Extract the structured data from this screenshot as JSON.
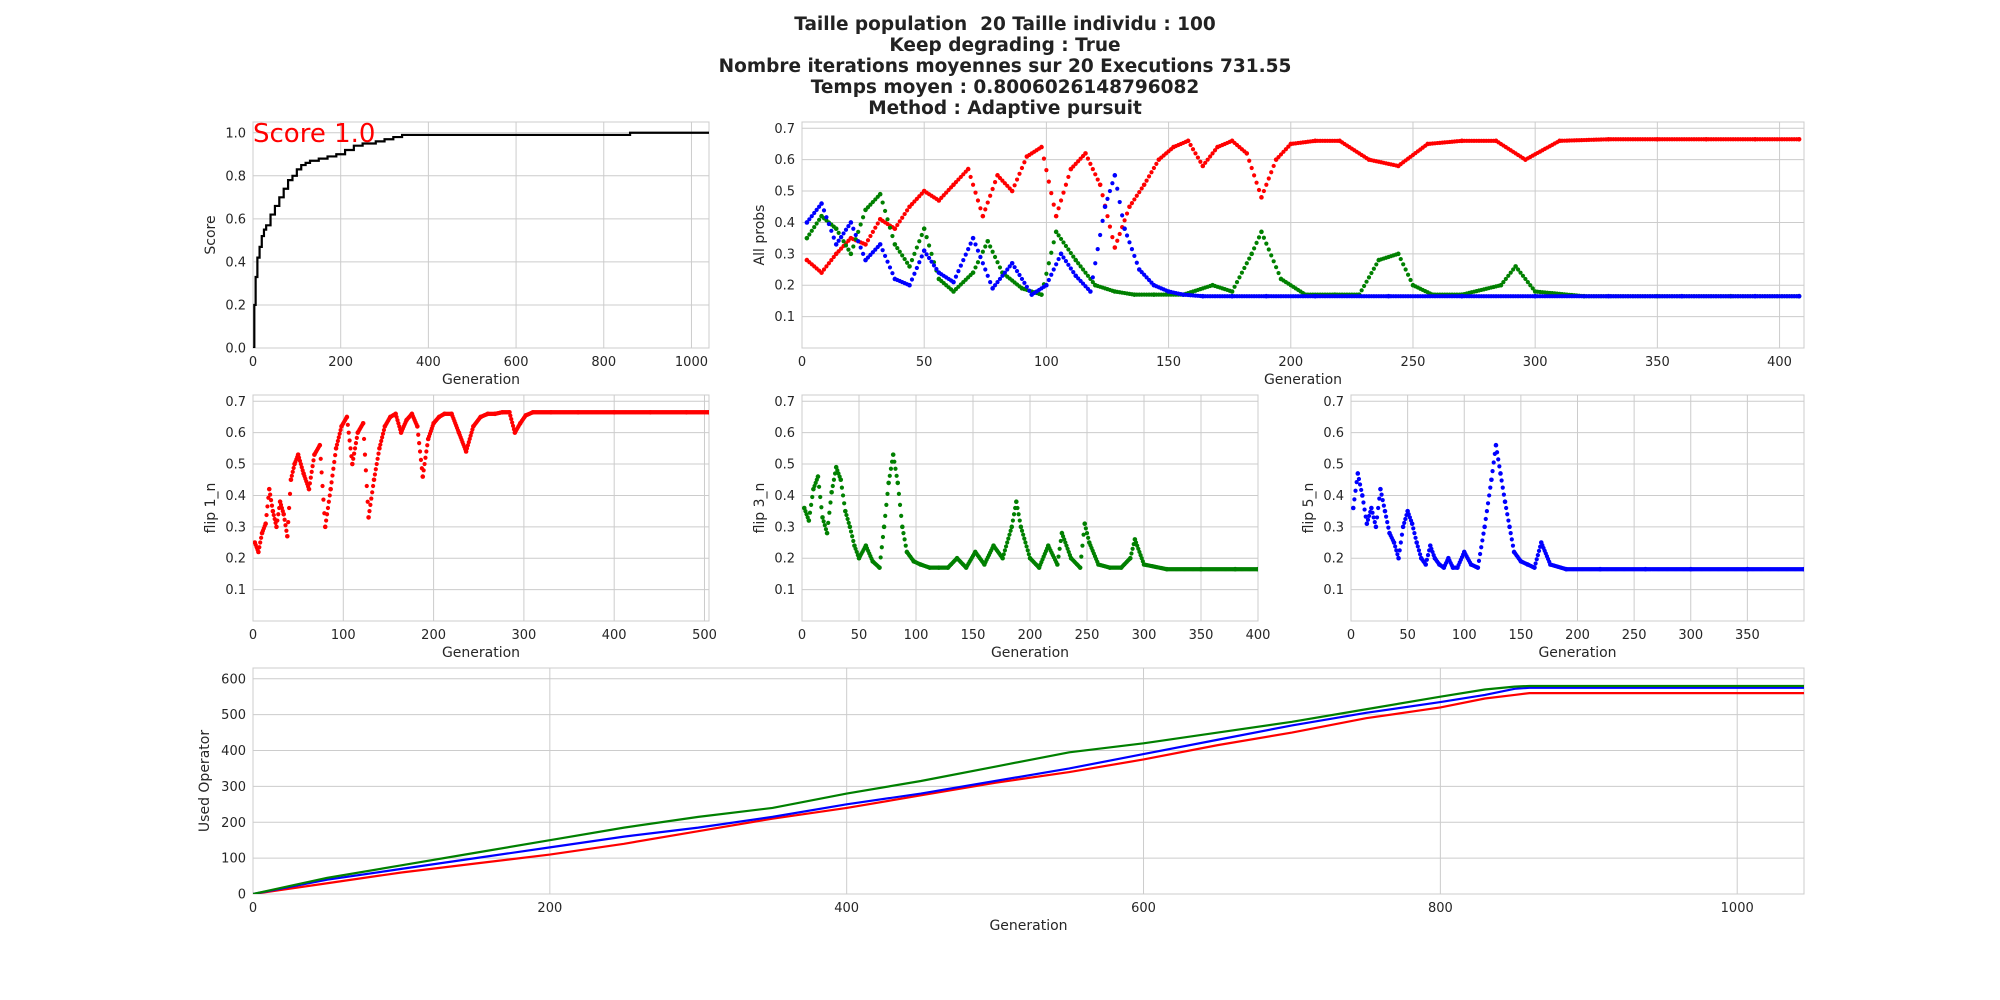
{
  "title_lines": [
    "Taille population  20 Taille individu : 100",
    "Keep degrading : True",
    "Nombre iterations moyennes sur 20 Executions 731.55",
    "Temps moyen : 0.8006026148796082",
    "Method : Adaptive pursuit"
  ],
  "colors": {
    "flip1": "#ff0000",
    "flip3": "#008000",
    "flip5": "#0000ff",
    "score": "#000000",
    "annotation": "#ff0000"
  },
  "chart_data": [
    {
      "id": "score",
      "type": "line",
      "xlabel": "Generation",
      "ylabel": "Score",
      "xlim": [
        0,
        1040
      ],
      "ylim": [
        0,
        1.05
      ],
      "xticks": [
        0,
        200,
        400,
        600,
        800,
        1000
      ],
      "yticks": [
        0.0,
        0.2,
        0.4,
        0.6,
        0.8,
        1.0
      ],
      "xtick_labels": [
        "0",
        "200",
        "400",
        "600",
        "800",
        "1000"
      ],
      "ytick_labels": [
        "0.0",
        "0.2",
        "0.4",
        "0.6",
        "0.8",
        "1.0"
      ],
      "grid": true,
      "annotation": "Score 1.0",
      "series": [
        {
          "color": "#000000",
          "step": true,
          "x": [
            0,
            3,
            6,
            10,
            15,
            20,
            25,
            30,
            40,
            50,
            60,
            70,
            80,
            90,
            100,
            110,
            120,
            130,
            150,
            170,
            190,
            210,
            230,
            250,
            280,
            300,
            320,
            340,
            400,
            500,
            600,
            700,
            860,
            1000,
            1040
          ],
          "y": [
            0.0,
            0.2,
            0.33,
            0.42,
            0.47,
            0.52,
            0.55,
            0.57,
            0.62,
            0.66,
            0.7,
            0.74,
            0.78,
            0.8,
            0.83,
            0.85,
            0.86,
            0.87,
            0.88,
            0.89,
            0.9,
            0.92,
            0.94,
            0.95,
            0.96,
            0.97,
            0.98,
            0.99,
            0.99,
            0.99,
            0.99,
            0.99,
            1.0,
            1.0,
            1.0
          ]
        }
      ]
    },
    {
      "id": "allprobs",
      "type": "scatter",
      "xlabel": "Generation",
      "ylabel": "All probs",
      "xlim": [
        0,
        410
      ],
      "ylim": [
        0.0,
        0.72
      ],
      "xticks": [
        0,
        50,
        100,
        150,
        200,
        250,
        300,
        350,
        400
      ],
      "yticks": [
        0.1,
        0.2,
        0.3,
        0.4,
        0.5,
        0.6,
        0.7
      ],
      "xtick_labels": [
        "0",
        "50",
        "100",
        "150",
        "200",
        "250",
        "300",
        "350",
        "400"
      ],
      "ytick_labels": [
        "0.1",
        "0.2",
        "0.3",
        "0.4",
        "0.5",
        "0.6",
        "0.7"
      ],
      "grid": true,
      "series": [
        {
          "color": "#ff0000",
          "x": [
            2,
            8,
            14,
            20,
            26,
            32,
            38,
            44,
            50,
            56,
            62,
            68,
            74,
            80,
            86,
            92,
            98,
            104,
            110,
            116,
            122,
            128,
            134,
            140,
            146,
            152,
            158,
            164,
            170,
            176,
            182,
            188,
            194,
            200,
            210,
            220,
            232,
            244,
            256,
            270,
            284,
            296,
            310,
            330,
            350,
            370,
            390,
            408
          ],
          "y": [
            0.28,
            0.24,
            0.3,
            0.35,
            0.33,
            0.41,
            0.38,
            0.45,
            0.5,
            0.47,
            0.52,
            0.57,
            0.42,
            0.55,
            0.5,
            0.61,
            0.64,
            0.42,
            0.57,
            0.62,
            0.52,
            0.32,
            0.45,
            0.52,
            0.6,
            0.64,
            0.66,
            0.58,
            0.64,
            0.66,
            0.62,
            0.48,
            0.6,
            0.65,
            0.66,
            0.66,
            0.6,
            0.58,
            0.65,
            0.66,
            0.66,
            0.6,
            0.66,
            0.665,
            0.665,
            0.665,
            0.665,
            0.665
          ]
        },
        {
          "color": "#008000",
          "x": [
            2,
            8,
            14,
            20,
            26,
            32,
            38,
            44,
            50,
            56,
            62,
            70,
            76,
            82,
            90,
            98,
            104,
            112,
            120,
            128,
            136,
            144,
            156,
            168,
            176,
            184,
            188,
            196,
            206,
            218,
            228,
            236,
            244,
            250,
            258,
            270,
            286,
            292,
            300,
            320,
            350,
            380,
            408
          ],
          "y": [
            0.35,
            0.42,
            0.38,
            0.3,
            0.44,
            0.49,
            0.33,
            0.26,
            0.38,
            0.22,
            0.18,
            0.24,
            0.34,
            0.24,
            0.19,
            0.17,
            0.37,
            0.28,
            0.2,
            0.18,
            0.17,
            0.17,
            0.17,
            0.2,
            0.18,
            0.3,
            0.37,
            0.22,
            0.17,
            0.17,
            0.17,
            0.28,
            0.3,
            0.2,
            0.17,
            0.17,
            0.2,
            0.26,
            0.18,
            0.165,
            0.165,
            0.165,
            0.165
          ]
        },
        {
          "color": "#0000ff",
          "x": [
            2,
            8,
            14,
            20,
            26,
            32,
            38,
            44,
            50,
            56,
            62,
            70,
            78,
            86,
            94,
            100,
            106,
            112,
            118,
            124,
            128,
            132,
            138,
            144,
            150,
            156,
            164,
            176,
            190,
            210,
            240,
            270,
            300,
            330,
            360,
            390,
            408
          ],
          "y": [
            0.4,
            0.46,
            0.33,
            0.4,
            0.28,
            0.33,
            0.22,
            0.2,
            0.31,
            0.24,
            0.21,
            0.35,
            0.19,
            0.27,
            0.17,
            0.2,
            0.3,
            0.23,
            0.18,
            0.45,
            0.55,
            0.38,
            0.25,
            0.2,
            0.18,
            0.17,
            0.165,
            0.165,
            0.165,
            0.165,
            0.165,
            0.165,
            0.165,
            0.165,
            0.165,
            0.165,
            0.165
          ]
        }
      ]
    },
    {
      "id": "flip1",
      "type": "scatter",
      "xlabel": "Generation",
      "ylabel": "flip 1_n",
      "xlim": [
        0,
        505
      ],
      "ylim": [
        0.0,
        0.72
      ],
      "xticks": [
        0,
        100,
        200,
        300,
        400,
        500
      ],
      "yticks": [
        0.1,
        0.2,
        0.3,
        0.4,
        0.5,
        0.6,
        0.7
      ],
      "xtick_labels": [
        "0",
        "100",
        "200",
        "300",
        "400",
        "500"
      ],
      "ytick_labels": [
        "0.1",
        "0.2",
        "0.3",
        "0.4",
        "0.5",
        "0.6",
        "0.7"
      ],
      "grid": true,
      "series": [
        {
          "color": "#ff0000",
          "x": [
            2,
            6,
            10,
            14,
            18,
            22,
            26,
            30,
            34,
            38,
            42,
            46,
            50,
            56,
            62,
            68,
            74,
            80,
            86,
            92,
            98,
            104,
            110,
            116,
            122,
            128,
            134,
            140,
            146,
            152,
            158,
            164,
            170,
            176,
            182,
            188,
            194,
            200,
            206,
            212,
            220,
            228,
            236,
            244,
            252,
            260,
            268,
            276,
            284,
            290,
            296,
            302,
            310,
            330,
            360,
            400,
            440,
            480,
            505
          ],
          "y": [
            0.25,
            0.22,
            0.28,
            0.31,
            0.42,
            0.35,
            0.3,
            0.38,
            0.34,
            0.27,
            0.45,
            0.5,
            0.53,
            0.47,
            0.42,
            0.53,
            0.56,
            0.3,
            0.42,
            0.55,
            0.62,
            0.65,
            0.5,
            0.6,
            0.63,
            0.33,
            0.45,
            0.55,
            0.62,
            0.65,
            0.66,
            0.6,
            0.64,
            0.66,
            0.62,
            0.46,
            0.58,
            0.63,
            0.65,
            0.66,
            0.66,
            0.6,
            0.54,
            0.62,
            0.65,
            0.66,
            0.66,
            0.665,
            0.665,
            0.6,
            0.63,
            0.655,
            0.665,
            0.665,
            0.665,
            0.665,
            0.665,
            0.665,
            0.665
          ]
        }
      ]
    },
    {
      "id": "flip3",
      "type": "scatter",
      "xlabel": "Generation",
      "ylabel": "flip 3_n",
      "xlim": [
        0,
        400
      ],
      "ylim": [
        0.0,
        0.72
      ],
      "xticks": [
        0,
        50,
        100,
        150,
        200,
        250,
        300,
        350,
        400
      ],
      "yticks": [
        0.1,
        0.2,
        0.3,
        0.4,
        0.5,
        0.6,
        0.7
      ],
      "xtick_labels": [
        "0",
        "50",
        "100",
        "150",
        "200",
        "250",
        "300",
        "350",
        "400"
      ],
      "ytick_labels": [
        "0.1",
        "0.2",
        "0.3",
        "0.4",
        "0.5",
        "0.6",
        "0.7"
      ],
      "grid": true,
      "series": [
        {
          "color": "#008000",
          "x": [
            2,
            6,
            10,
            14,
            18,
            22,
            26,
            30,
            34,
            38,
            42,
            46,
            50,
            56,
            62,
            68,
            72,
            76,
            80,
            84,
            88,
            92,
            98,
            104,
            112,
            120,
            128,
            136,
            144,
            152,
            160,
            168,
            176,
            184,
            188,
            192,
            200,
            208,
            216,
            224,
            228,
            236,
            244,
            248,
            252,
            260,
            270,
            280,
            288,
            292,
            300,
            320,
            350,
            380,
            400
          ],
          "y": [
            0.36,
            0.32,
            0.42,
            0.46,
            0.33,
            0.28,
            0.41,
            0.49,
            0.45,
            0.35,
            0.3,
            0.24,
            0.2,
            0.24,
            0.19,
            0.17,
            0.3,
            0.44,
            0.53,
            0.44,
            0.3,
            0.22,
            0.19,
            0.18,
            0.17,
            0.17,
            0.17,
            0.2,
            0.17,
            0.22,
            0.18,
            0.24,
            0.2,
            0.3,
            0.38,
            0.3,
            0.2,
            0.17,
            0.24,
            0.18,
            0.28,
            0.2,
            0.17,
            0.31,
            0.25,
            0.18,
            0.17,
            0.17,
            0.2,
            0.26,
            0.18,
            0.165,
            0.165,
            0.165,
            0.165
          ]
        }
      ]
    },
    {
      "id": "flip5",
      "type": "scatter",
      "xlabel": "Generation",
      "ylabel": "flip 5_n",
      "xlim": [
        0,
        400
      ],
      "ylim": [
        0.0,
        0.72
      ],
      "xticks": [
        0,
        50,
        100,
        150,
        200,
        250,
        300,
        350
      ],
      "yticks": [
        0.1,
        0.2,
        0.3,
        0.4,
        0.5,
        0.6,
        0.7
      ],
      "xtick_labels": [
        "0",
        "50",
        "100",
        "150",
        "200",
        "250",
        "300",
        "350"
      ],
      "ytick_labels": [
        "0.1",
        "0.2",
        "0.3",
        "0.4",
        "0.5",
        "0.6",
        "0.7"
      ],
      "grid": true,
      "series": [
        {
          "color": "#0000ff",
          "x": [
            2,
            6,
            10,
            14,
            18,
            22,
            26,
            30,
            34,
            38,
            42,
            46,
            50,
            54,
            58,
            62,
            66,
            70,
            74,
            78,
            82,
            86,
            90,
            94,
            100,
            106,
            112,
            118,
            124,
            128,
            132,
            136,
            140,
            144,
            150,
            156,
            162,
            168,
            176,
            190,
            220,
            260,
            300,
            350,
            400
          ],
          "y": [
            0.36,
            0.47,
            0.4,
            0.31,
            0.36,
            0.3,
            0.42,
            0.35,
            0.28,
            0.25,
            0.2,
            0.3,
            0.35,
            0.31,
            0.25,
            0.2,
            0.18,
            0.24,
            0.2,
            0.18,
            0.17,
            0.2,
            0.17,
            0.17,
            0.22,
            0.18,
            0.17,
            0.3,
            0.45,
            0.56,
            0.47,
            0.38,
            0.3,
            0.22,
            0.19,
            0.18,
            0.17,
            0.25,
            0.18,
            0.165,
            0.165,
            0.165,
            0.165,
            0.165,
            0.165
          ]
        }
      ]
    },
    {
      "id": "usedop",
      "type": "line",
      "xlabel": "Generation",
      "ylabel": "Used Operator",
      "xlim": [
        0,
        1045
      ],
      "ylim": [
        0,
        630
      ],
      "xticks": [
        0,
        200,
        400,
        600,
        800,
        1000
      ],
      "yticks": [
        0,
        100,
        200,
        300,
        400,
        500,
        600
      ],
      "xtick_labels": [
        "0",
        "200",
        "400",
        "600",
        "800",
        "1000"
      ],
      "ytick_labels": [
        "0",
        "100",
        "200",
        "300",
        "400",
        "500",
        "600"
      ],
      "grid": true,
      "series": [
        {
          "color": "#ff0000",
          "x": [
            0,
            50,
            100,
            150,
            200,
            250,
            300,
            350,
            400,
            450,
            500,
            550,
            600,
            650,
            700,
            750,
            800,
            830,
            850,
            860,
            1045
          ],
          "y": [
            0,
            30,
            60,
            85,
            110,
            140,
            175,
            210,
            240,
            275,
            310,
            340,
            375,
            415,
            450,
            490,
            520,
            545,
            555,
            560,
            560
          ]
        },
        {
          "color": "#0000ff",
          "x": [
            0,
            50,
            100,
            150,
            200,
            250,
            300,
            350,
            400,
            450,
            500,
            550,
            600,
            650,
            700,
            750,
            800,
            830,
            850,
            860,
            1045
          ],
          "y": [
            0,
            40,
            70,
            100,
            130,
            160,
            185,
            215,
            250,
            280,
            315,
            350,
            390,
            430,
            470,
            505,
            535,
            555,
            572,
            575,
            575
          ]
        },
        {
          "color": "#008000",
          "x": [
            0,
            50,
            100,
            150,
            200,
            250,
            300,
            350,
            400,
            450,
            500,
            550,
            600,
            650,
            700,
            750,
            800,
            830,
            850,
            860,
            1045
          ],
          "y": [
            0,
            45,
            80,
            115,
            150,
            185,
            215,
            240,
            280,
            315,
            355,
            395,
            420,
            450,
            480,
            515,
            550,
            570,
            578,
            580,
            580
          ]
        }
      ]
    }
  ]
}
